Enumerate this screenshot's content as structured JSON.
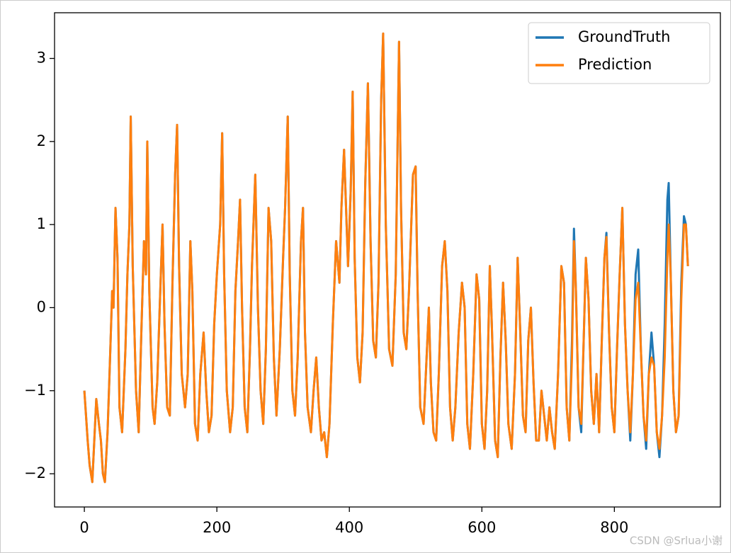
{
  "chart_data": {
    "type": "line",
    "x": [
      0,
      5,
      8,
      12,
      15,
      18,
      22,
      25,
      28,
      31,
      35,
      38,
      42,
      44,
      47,
      50,
      53,
      57,
      62,
      65,
      68,
      70,
      73,
      78,
      82,
      86,
      90,
      93,
      95,
      98,
      103,
      106,
      110,
      115,
      118,
      121,
      125,
      129,
      133,
      137,
      140,
      143,
      147,
      152,
      156,
      160,
      163,
      167,
      171,
      175,
      180,
      184,
      188,
      192,
      196,
      200,
      205,
      208,
      211,
      215,
      220,
      224,
      228,
      232,
      235,
      238,
      242,
      246,
      250,
      253,
      258,
      262,
      266,
      270,
      274,
      278,
      282,
      286,
      290,
      295,
      300,
      303,
      307,
      310,
      314,
      318,
      322,
      327,
      330,
      333,
      337,
      342,
      346,
      350,
      354,
      358,
      362,
      366,
      370,
      375,
      380,
      385,
      388,
      392,
      398,
      402,
      405,
      408,
      412,
      416,
      420,
      424,
      428,
      432,
      436,
      440,
      444,
      448,
      451,
      455,
      460,
      465,
      470,
      475,
      478,
      482,
      486,
      490,
      496,
      500,
      503,
      507,
      512,
      516,
      520,
      523,
      527,
      531,
      535,
      540,
      544,
      548,
      552,
      556,
      560,
      565,
      570,
      574,
      578,
      582,
      587,
      592,
      596,
      600,
      604,
      608,
      612,
      615,
      620,
      624,
      628,
      632,
      636,
      640,
      645,
      650,
      654,
      658,
      662,
      666,
      670,
      674,
      678,
      682,
      686,
      690,
      694,
      698,
      702,
      706,
      710,
      715,
      720,
      724,
      728,
      732,
      736,
      739,
      742,
      746,
      750,
      754,
      757,
      761,
      765,
      769,
      773,
      777,
      781,
      785,
      788,
      792,
      796,
      800,
      804,
      808,
      812,
      816,
      820,
      824,
      828,
      832,
      836,
      840,
      844,
      848,
      852,
      856,
      860,
      864,
      868,
      872,
      876,
      880,
      882,
      885,
      889,
      893,
      897,
      901,
      905,
      908,
      911
    ],
    "series": [
      {
        "name": "GroundTruth",
        "color": "#1f77b4",
        "values": [
          -1.0,
          -1.6,
          -1.9,
          -2.1,
          -1.6,
          -1.1,
          -1.4,
          -1.6,
          -2.0,
          -2.1,
          -1.5,
          -0.8,
          0.2,
          0.0,
          1.2,
          0.6,
          -1.2,
          -1.5,
          -0.5,
          0.4,
          1.0,
          2.3,
          0.5,
          -1.0,
          -1.5,
          -0.3,
          0.8,
          0.4,
          2.0,
          0.2,
          -1.2,
          -1.4,
          -0.9,
          0.3,
          1.0,
          -0.2,
          -1.2,
          -1.3,
          0.3,
          1.6,
          2.2,
          0.5,
          -0.8,
          -1.2,
          -0.8,
          0.8,
          0.2,
          -1.4,
          -1.6,
          -0.8,
          -0.3,
          -1.0,
          -1.5,
          -1.3,
          -0.2,
          0.4,
          1.0,
          2.1,
          0.4,
          -1.0,
          -1.5,
          -1.2,
          0.2,
          0.8,
          1.3,
          0.0,
          -1.2,
          -1.5,
          -0.5,
          0.5,
          1.6,
          0.0,
          -1.0,
          -1.4,
          -0.5,
          1.2,
          0.8,
          -0.6,
          -1.3,
          -0.5,
          0.6,
          1.2,
          2.3,
          0.4,
          -1.0,
          -1.3,
          -0.6,
          0.8,
          1.2,
          -0.3,
          -1.2,
          -1.5,
          -1.0,
          -0.6,
          -1.2,
          -1.6,
          -1.5,
          -1.8,
          -1.4,
          -0.2,
          0.8,
          0.3,
          1.2,
          1.9,
          0.5,
          1.4,
          2.6,
          0.6,
          -0.6,
          -0.9,
          -0.3,
          1.5,
          2.7,
          0.8,
          -0.4,
          -0.6,
          0.3,
          2.5,
          3.3,
          1.0,
          -0.5,
          -0.7,
          0.4,
          3.2,
          1.2,
          -0.3,
          -0.5,
          0.2,
          1.6,
          1.7,
          0.2,
          -1.2,
          -1.4,
          -0.7,
          0.0,
          -0.9,
          -1.5,
          -1.6,
          -0.8,
          0.5,
          0.8,
          0.2,
          -1.2,
          -1.6,
          -1.2,
          -0.3,
          0.3,
          0.0,
          -1.4,
          -1.7,
          -0.8,
          0.4,
          0.1,
          -1.4,
          -1.7,
          -1.0,
          0.5,
          -0.2,
          -1.6,
          -1.8,
          -0.6,
          0.3,
          -0.4,
          -1.4,
          -1.7,
          -0.8,
          0.6,
          -0.3,
          -1.3,
          -1.5,
          -0.4,
          0.0,
          -0.9,
          -1.6,
          -1.6,
          -1.0,
          -1.3,
          -1.6,
          -1.2,
          -1.5,
          -1.7,
          -0.8,
          0.5,
          0.3,
          -1.2,
          -1.6,
          -0.4,
          0.95,
          0.2,
          -1.2,
          -1.5,
          -0.3,
          0.6,
          0.1,
          -1.0,
          -1.4,
          -0.8,
          -1.5,
          -0.4,
          0.6,
          0.9,
          -0.3,
          -1.2,
          -1.5,
          -0.5,
          0.4,
          1.2,
          -0.2,
          -1.0,
          -1.6,
          -0.8,
          0.4,
          0.7,
          -0.5,
          -1.3,
          -1.7,
          -0.8,
          -0.3,
          -0.7,
          -1.5,
          -1.8,
          -1.3,
          -0.2,
          1.3,
          1.5,
          0.4,
          -1.0,
          -1.5,
          -1.3,
          0.3,
          1.1,
          1.0,
          0.5
        ]
      },
      {
        "name": "Prediction",
        "color": "#ff7f0e",
        "values": [
          -1.0,
          -1.6,
          -1.9,
          -2.1,
          -1.6,
          -1.1,
          -1.4,
          -1.6,
          -2.0,
          -2.1,
          -1.5,
          -0.8,
          0.2,
          0.0,
          1.2,
          0.6,
          -1.2,
          -1.5,
          -0.5,
          0.4,
          1.0,
          2.3,
          0.5,
          -1.0,
          -1.5,
          -0.3,
          0.8,
          0.4,
          2.0,
          0.2,
          -1.2,
          -1.4,
          -0.9,
          0.3,
          1.0,
          -0.2,
          -1.2,
          -1.3,
          0.3,
          1.6,
          2.2,
          0.5,
          -0.8,
          -1.2,
          -0.8,
          0.8,
          0.2,
          -1.4,
          -1.6,
          -0.8,
          -0.3,
          -1.0,
          -1.5,
          -1.3,
          -0.2,
          0.4,
          1.0,
          2.1,
          0.4,
          -1.0,
          -1.5,
          -1.2,
          0.2,
          0.8,
          1.3,
          0.0,
          -1.2,
          -1.5,
          -0.5,
          0.5,
          1.6,
          0.0,
          -1.0,
          -1.4,
          -0.5,
          1.2,
          0.8,
          -0.6,
          -1.3,
          -0.5,
          0.6,
          1.2,
          2.3,
          0.4,
          -1.0,
          -1.3,
          -0.6,
          0.8,
          1.2,
          -0.3,
          -1.2,
          -1.5,
          -1.0,
          -0.6,
          -1.2,
          -1.6,
          -1.5,
          -1.8,
          -1.4,
          -0.2,
          0.8,
          0.3,
          1.2,
          1.9,
          0.5,
          1.4,
          2.6,
          0.6,
          -0.6,
          -0.9,
          -0.3,
          1.5,
          2.7,
          0.8,
          -0.4,
          -0.6,
          0.3,
          2.5,
          3.3,
          1.0,
          -0.5,
          -0.7,
          0.4,
          3.2,
          1.2,
          -0.3,
          -0.5,
          0.2,
          1.6,
          1.7,
          0.2,
          -1.2,
          -1.4,
          -0.7,
          0.0,
          -0.9,
          -1.5,
          -1.6,
          -0.8,
          0.5,
          0.8,
          0.2,
          -1.2,
          -1.6,
          -1.2,
          -0.3,
          0.3,
          0.0,
          -1.4,
          -1.7,
          -0.8,
          0.4,
          0.1,
          -1.4,
          -1.7,
          -1.0,
          0.5,
          -0.2,
          -1.6,
          -1.8,
          -0.6,
          0.3,
          -0.4,
          -1.4,
          -1.7,
          -0.8,
          0.6,
          -0.3,
          -1.3,
          -1.5,
          -0.4,
          0.0,
          -0.9,
          -1.6,
          -1.6,
          -1.0,
          -1.3,
          -1.6,
          -1.2,
          -1.5,
          -1.7,
          -0.8,
          0.5,
          0.3,
          -1.2,
          -1.6,
          -0.6,
          0.8,
          0.2,
          -1.2,
          -1.4,
          -0.3,
          0.6,
          0.1,
          -1.0,
          -1.4,
          -0.8,
          -1.5,
          -0.4,
          0.6,
          0.85,
          -0.3,
          -1.2,
          -1.5,
          -0.5,
          0.4,
          1.2,
          -0.2,
          -1.0,
          -1.5,
          -0.8,
          0.1,
          0.3,
          -0.5,
          -1.3,
          -1.6,
          -0.8,
          -0.6,
          -0.7,
          -1.5,
          -1.7,
          -1.3,
          -0.6,
          0.6,
          1.0,
          0.4,
          -1.0,
          -1.5,
          -1.3,
          0.1,
          1.0,
          1.0,
          0.5
        ]
      }
    ],
    "xlim": [
      -45,
      960
    ],
    "xticks": [
      0,
      200,
      400,
      600,
      800
    ],
    "ylim": [
      -2.4,
      3.55
    ],
    "yticks": [
      {
        "value": -2,
        "label": "−2"
      },
      {
        "value": -1,
        "label": "−1"
      },
      0,
      1,
      2,
      3
    ],
    "legend": "upper right",
    "watermark": "CSDN @Srlua小谢"
  }
}
